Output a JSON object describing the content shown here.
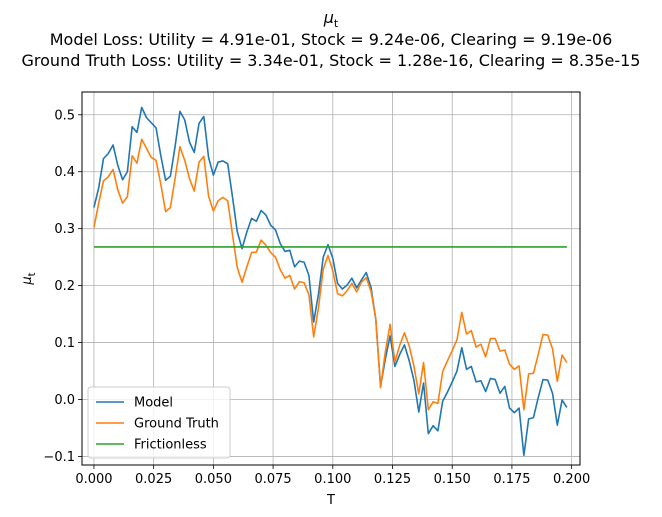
{
  "chart_data": {
    "type": "line",
    "title_symbol": "μ",
    "title_symbol_subscript": "t",
    "title_lines": [
      "Model Loss: Utility = 4.91e-01, Stock = 9.24e-06, Clearing = 9.19e-06",
      "Ground Truth Loss: Utility = 3.34e-01, Stock = 1.28e-16, Clearing = 8.35e-15"
    ],
    "xlabel": "T",
    "ylabel_symbol": "μ",
    "ylabel_subscript": "t",
    "xlim": [
      -0.005,
      0.2035
    ],
    "ylim": [
      -0.115,
      0.54
    ],
    "xticks": [
      0.0,
      0.025,
      0.05,
      0.075,
      0.1,
      0.125,
      0.15,
      0.175,
      0.2
    ],
    "xtick_labels": [
      "0.000",
      "0.025",
      "0.050",
      "0.075",
      "0.100",
      "0.125",
      "0.150",
      "0.175",
      "0.200"
    ],
    "yticks": [
      -0.1,
      0.0,
      0.1,
      0.2,
      0.3,
      0.4,
      0.5
    ],
    "ytick_labels": [
      "−0.1",
      "0.0",
      "0.1",
      "0.2",
      "0.3",
      "0.4",
      "0.5"
    ],
    "grid": true,
    "legend_position": "lower-left",
    "x_start": 0.0,
    "x_step": 0.002,
    "series": [
      {
        "name": "Model",
        "color": "#1f77b4",
        "values": [
          0.337,
          0.372,
          0.423,
          0.432,
          0.447,
          0.411,
          0.386,
          0.4,
          0.479,
          0.469,
          0.513,
          0.495,
          0.486,
          0.477,
          0.428,
          0.385,
          0.392,
          0.445,
          0.506,
          0.491,
          0.452,
          0.434,
          0.485,
          0.497,
          0.425,
          0.394,
          0.417,
          0.419,
          0.414,
          0.356,
          0.295,
          0.265,
          0.294,
          0.318,
          0.313,
          0.332,
          0.324,
          0.306,
          0.298,
          0.274,
          0.26,
          0.262,
          0.233,
          0.243,
          0.241,
          0.218,
          0.136,
          0.185,
          0.25,
          0.272,
          0.248,
          0.204,
          0.194,
          0.201,
          0.213,
          0.196,
          0.21,
          0.223,
          0.197,
          0.141,
          0.023,
          0.071,
          0.112,
          0.058,
          0.079,
          0.096,
          0.068,
          0.033,
          -0.022,
          0.029,
          -0.06,
          -0.046,
          -0.055,
          -0.003,
          0.013,
          0.031,
          0.05,
          0.091,
          0.053,
          0.058,
          0.031,
          0.033,
          0.014,
          0.037,
          0.035,
          0.011,
          0.023,
          -0.015,
          -0.023,
          -0.015,
          -0.098,
          -0.034,
          -0.032,
          0.003,
          0.035,
          0.034,
          0.011,
          -0.045,
          -0.001,
          -0.014
        ]
      },
      {
        "name": "Ground Truth",
        "color": "#ff7f0e",
        "values": [
          0.302,
          0.345,
          0.384,
          0.391,
          0.404,
          0.368,
          0.345,
          0.356,
          0.428,
          0.415,
          0.457,
          0.441,
          0.425,
          0.42,
          0.378,
          0.33,
          0.337,
          0.389,
          0.444,
          0.42,
          0.388,
          0.366,
          0.417,
          0.427,
          0.357,
          0.331,
          0.349,
          0.355,
          0.349,
          0.29,
          0.232,
          0.206,
          0.233,
          0.258,
          0.259,
          0.28,
          0.271,
          0.258,
          0.25,
          0.228,
          0.213,
          0.218,
          0.194,
          0.207,
          0.205,
          0.184,
          0.11,
          0.161,
          0.229,
          0.253,
          0.226,
          0.186,
          0.182,
          0.191,
          0.204,
          0.189,
          0.206,
          0.214,
          0.19,
          0.142,
          0.021,
          0.084,
          0.132,
          0.066,
          0.095,
          0.117,
          0.094,
          0.058,
          0.01,
          0.065,
          -0.018,
          -0.004,
          -0.007,
          0.049,
          0.068,
          0.086,
          0.105,
          0.153,
          0.115,
          0.121,
          0.092,
          0.097,
          0.075,
          0.107,
          0.107,
          0.085,
          0.087,
          0.062,
          0.053,
          0.059,
          -0.018,
          0.045,
          0.046,
          0.079,
          0.114,
          0.113,
          0.089,
          0.032,
          0.078,
          0.065
        ]
      },
      {
        "name": "Frictionless",
        "color": "#2ca02c",
        "values": [
          0.268,
          0.268,
          0.268,
          0.268,
          0.268,
          0.268,
          0.268,
          0.268,
          0.268,
          0.268,
          0.268,
          0.268,
          0.268,
          0.268,
          0.268,
          0.268,
          0.268,
          0.268,
          0.268,
          0.268,
          0.268,
          0.268,
          0.268,
          0.268,
          0.268,
          0.268,
          0.268,
          0.268,
          0.268,
          0.268,
          0.268,
          0.268,
          0.268,
          0.268,
          0.268,
          0.268,
          0.268,
          0.268,
          0.268,
          0.268,
          0.268,
          0.268,
          0.268,
          0.268,
          0.268,
          0.268,
          0.268,
          0.268,
          0.268,
          0.268,
          0.268,
          0.268,
          0.268,
          0.268,
          0.268,
          0.268,
          0.268,
          0.268,
          0.268,
          0.268,
          0.268,
          0.268,
          0.268,
          0.268,
          0.268,
          0.268,
          0.268,
          0.268,
          0.268,
          0.268,
          0.268,
          0.268,
          0.268,
          0.268,
          0.268,
          0.268,
          0.268,
          0.268,
          0.268,
          0.268,
          0.268,
          0.268,
          0.268,
          0.268,
          0.268,
          0.268,
          0.268,
          0.268,
          0.268,
          0.268,
          0.268,
          0.268,
          0.268,
          0.268,
          0.268,
          0.268,
          0.268,
          0.268,
          0.268,
          0.268
        ]
      }
    ]
  }
}
